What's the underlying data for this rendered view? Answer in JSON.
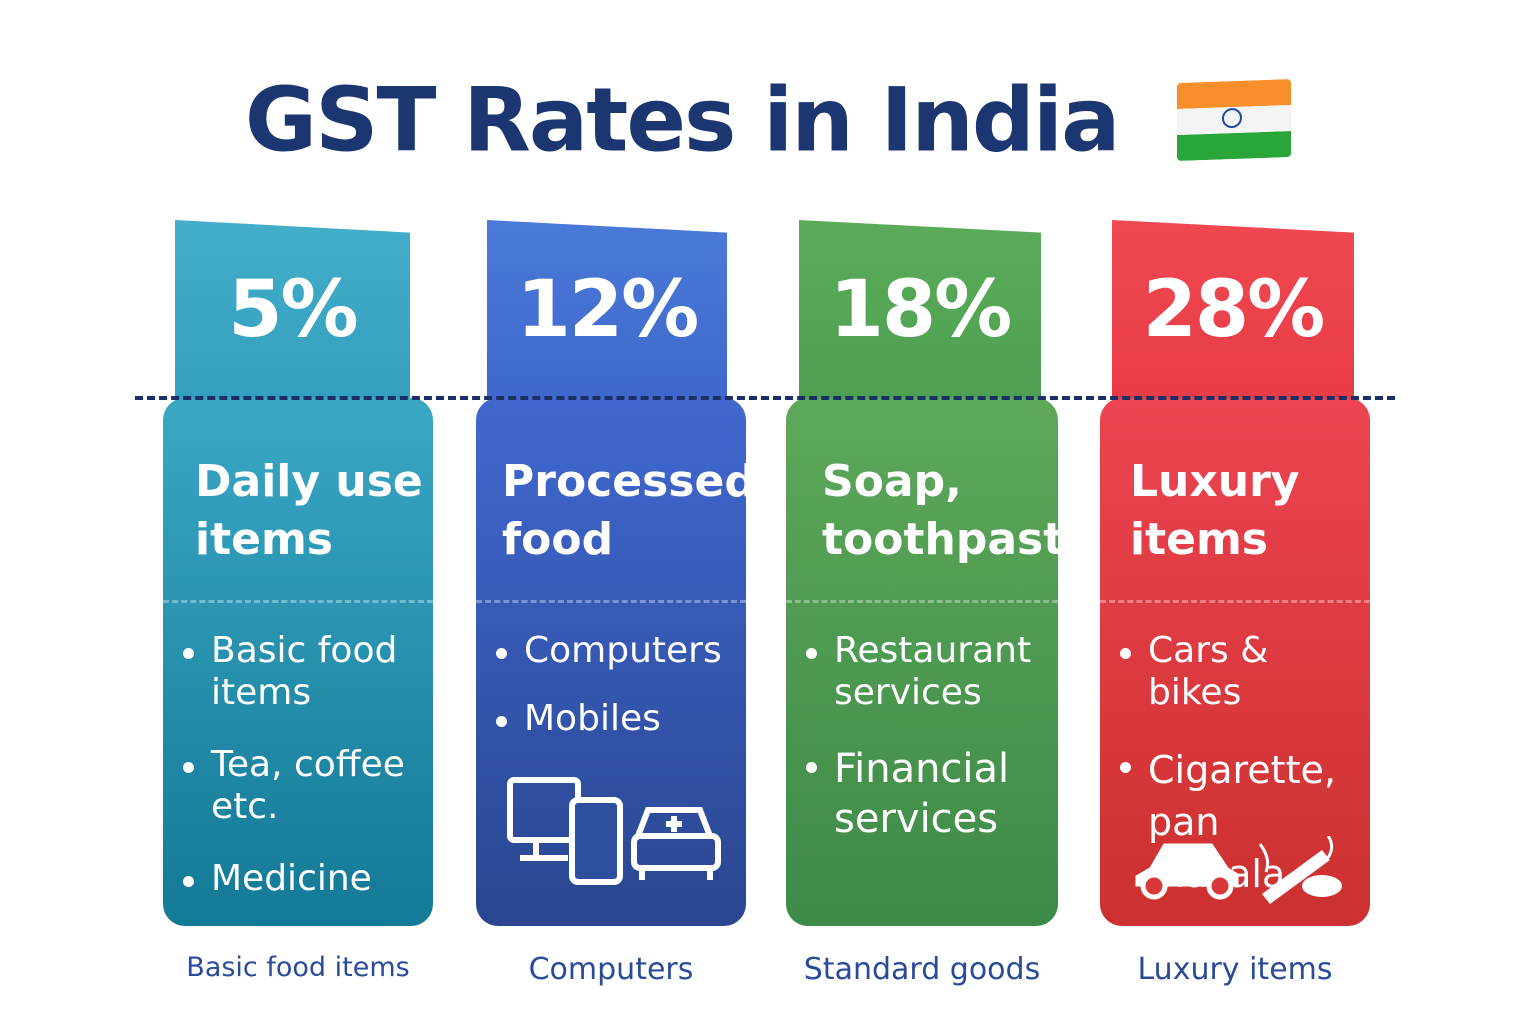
{
  "title": "GST Rates in India",
  "flag_icon": "india-flag-icon",
  "colors": {
    "title": "#1b3670",
    "slab_5": "#2a98b8",
    "slab_12": "#3c63c8",
    "slab_18": "#4e9e52",
    "slab_28": "#e23c44"
  },
  "slabs": [
    {
      "rate": "5%",
      "heading": [
        "Daily use",
        "items"
      ],
      "items": [
        "Basic food items",
        "Tea, coffee etc.",
        "Medicine"
      ],
      "caption": "Basic food items"
    },
    {
      "rate": "12%",
      "heading": [
        "Processed",
        "food"
      ],
      "items": [
        "Computers",
        "Mobiles"
      ],
      "icons": [
        "computer-icon",
        "mobile-icon",
        "ambulance-icon"
      ],
      "caption": "Computers"
    },
    {
      "rate": "18%",
      "heading": [
        "Soap,",
        "toothpaste"
      ],
      "items": [
        "Restaurant services",
        "Financial services"
      ],
      "caption": "Standard goods"
    },
    {
      "rate": "28%",
      "heading": [
        "Luxury",
        "items"
      ],
      "items": [
        "Cars & bikes",
        "Cigarette, pan masala"
      ],
      "icons": [
        "car-icon",
        "cigarette-icon"
      ],
      "caption": "Luxury items"
    }
  ]
}
